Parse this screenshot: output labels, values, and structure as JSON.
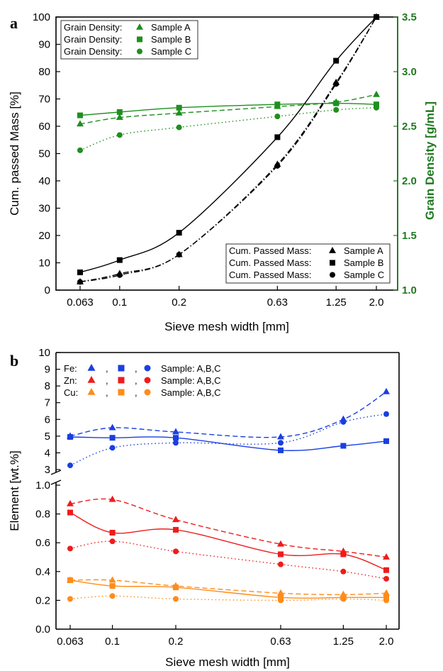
{
  "chart_data": [
    {
      "panel": "a",
      "type": "scatter",
      "xlabel": "Sieve mesh width [mm]",
      "ylabel": "Cum. passed Mass [%]",
      "y2label": "Grain Density [g/mL]",
      "x_ticks": [
        "0.063",
        "0.1",
        "0.2",
        "0.63",
        "1.25",
        "2.0"
      ],
      "x_scale": "log",
      "ylim": [
        0,
        100
      ],
      "y_ticks": [
        0,
        10,
        20,
        30,
        40,
        50,
        60,
        70,
        80,
        90,
        100
      ],
      "y2lim": [
        1.0,
        3.5
      ],
      "y2_ticks": [
        "1.0",
        "1.5",
        "2.0",
        "2.5",
        "3.0",
        "3.5"
      ],
      "x": [
        0.063,
        0.1,
        0.2,
        0.63,
        1.25,
        2.0
      ],
      "series": [
        {
          "legend": [
            "Grain Density:",
            "Sample A"
          ],
          "axis": "right",
          "marker": "triangle",
          "color": "#1f8f1f",
          "line": "dashed",
          "values": [
            2.52,
            2.58,
            2.62,
            2.68,
            2.72,
            2.79
          ]
        },
        {
          "legend": [
            "Grain Density:",
            "Sample B"
          ],
          "axis": "right",
          "marker": "square",
          "color": "#1f8f1f",
          "line": "solid",
          "values": [
            2.6,
            2.63,
            2.67,
            2.7,
            2.71,
            2.7
          ]
        },
        {
          "legend": [
            "Grain Density:",
            "Sample C"
          ],
          "axis": "right",
          "marker": "circle",
          "color": "#1f8f1f",
          "line": "dotted",
          "values": [
            2.28,
            2.42,
            2.49,
            2.59,
            2.65,
            2.67
          ]
        },
        {
          "legend": [
            "Cum. Passed Mass:",
            "Sample A"
          ],
          "axis": "left",
          "marker": "triangle",
          "color": "#000000",
          "line": "dashdot",
          "values": [
            3,
            6,
            13,
            46,
            76,
            100
          ]
        },
        {
          "legend": [
            "Cum. Passed Mass:",
            "Sample B"
          ],
          "axis": "left",
          "marker": "square",
          "color": "#000000",
          "line": "solid",
          "values": [
            6.5,
            11,
            21,
            56,
            84,
            100
          ]
        },
        {
          "legend": [
            "Cum. Passed Mass:",
            "Sample C"
          ],
          "axis": "left",
          "marker": "circle",
          "color": "#000000",
          "line": "dashdot",
          "values": [
            3,
            5.5,
            13,
            45.5,
            75.5,
            100
          ]
        }
      ]
    },
    {
      "panel": "b",
      "type": "scatter",
      "xlabel": "Sieve mesh width [mm]",
      "ylabel": "Element [wt.%]",
      "x_ticks": [
        "0.063",
        "0.1",
        "0.2",
        "0.63",
        "1.25",
        "2.0"
      ],
      "x_scale": "log",
      "y_ticks_upper": [
        3,
        4,
        5,
        6,
        7,
        8,
        9,
        10
      ],
      "y_ticks_lower": [
        "0.0",
        "0.2",
        "0.4",
        "0.6",
        "0.8",
        "1.0"
      ],
      "y_break": [
        1.0,
        3.0
      ],
      "x": [
        0.063,
        0.1,
        0.2,
        0.63,
        1.25,
        2.0
      ],
      "legend_rows": [
        {
          "element": "Fe:",
          "separator": ",",
          "text": "Sample: A,B,C",
          "color": "#1a3fe0"
        },
        {
          "element": "Zn:",
          "separator": ",",
          "text": "Sample: A,B,C",
          "color": "#ee1c1c"
        },
        {
          "element": "Cu:",
          "separator": ",",
          "text": "Sample: A,B,C",
          "color": "#ff8c1a"
        }
      ],
      "series": [
        {
          "element": "Fe",
          "sample": "A",
          "marker": "triangle",
          "color": "#1a3fe0",
          "line": "dashed",
          "values": [
            5.0,
            5.5,
            5.25,
            4.95,
            6.0,
            7.65
          ]
        },
        {
          "element": "Fe",
          "sample": "B",
          "marker": "square",
          "color": "#1a3fe0",
          "line": "solid",
          "values": [
            4.95,
            4.9,
            4.9,
            4.15,
            4.42,
            4.7
          ]
        },
        {
          "element": "Fe",
          "sample": "C",
          "marker": "circle",
          "color": "#1a3fe0",
          "line": "dotted",
          "values": [
            3.25,
            4.3,
            4.6,
            4.6,
            5.85,
            6.32
          ]
        },
        {
          "element": "Zn",
          "sample": "A",
          "marker": "triangle",
          "color": "#ee1c1c",
          "line": "dashed",
          "values": [
            0.87,
            0.9,
            0.76,
            0.59,
            0.54,
            0.5
          ]
        },
        {
          "element": "Zn",
          "sample": "B",
          "marker": "square",
          "color": "#ee1c1c",
          "line": "solid",
          "values": [
            0.81,
            0.67,
            0.69,
            0.52,
            0.52,
            0.41
          ]
        },
        {
          "element": "Zn",
          "sample": "C",
          "marker": "circle",
          "color": "#ee1c1c",
          "line": "dotted",
          "values": [
            0.56,
            0.61,
            0.54,
            0.45,
            0.4,
            0.35
          ]
        },
        {
          "element": "Cu",
          "sample": "A",
          "marker": "triangle",
          "color": "#ff8c1a",
          "line": "dashed",
          "values": [
            0.34,
            0.34,
            0.3,
            0.25,
            0.24,
            0.25
          ]
        },
        {
          "element": "Cu",
          "sample": "B",
          "marker": "square",
          "color": "#ff8c1a",
          "line": "solid",
          "values": [
            0.34,
            0.3,
            0.29,
            0.22,
            0.22,
            0.22
          ]
        },
        {
          "element": "Cu",
          "sample": "C",
          "marker": "circle",
          "color": "#ff8c1a",
          "line": "dotted",
          "values": [
            0.21,
            0.23,
            0.21,
            0.2,
            0.21,
            0.2
          ]
        }
      ]
    }
  ]
}
